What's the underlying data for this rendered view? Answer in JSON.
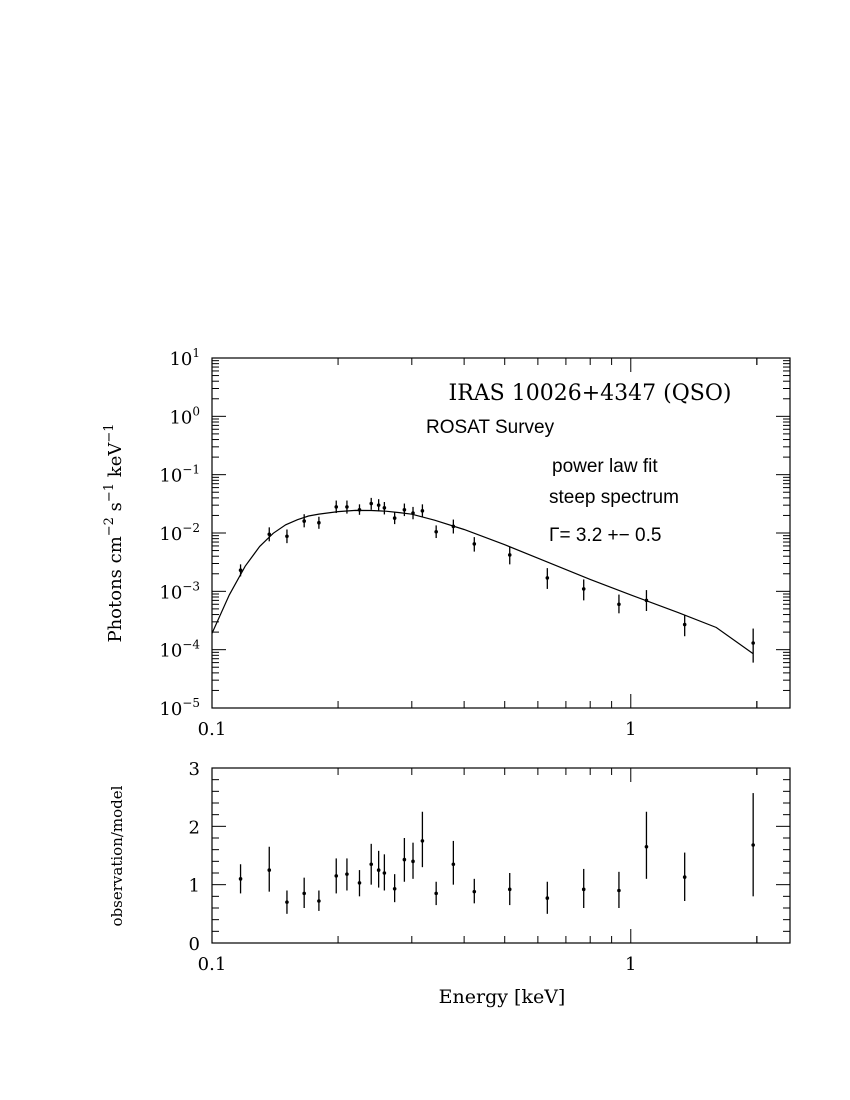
{
  "chart_data": [
    {
      "type": "scatter",
      "panel": "spectrum",
      "title": "IRAS 10026+4347 (QSO)",
      "subtitle": "ROSAT Survey",
      "annotations": {
        "fit_line1": "power law fit",
        "fit_line2": "steep spectrum",
        "gamma_symbol": "Γ",
        "gamma_text": "= 3.2 +− 0.5"
      },
      "xlabel": "",
      "ylabel": "Photons cm-2 s-1 keV-1",
      "ylabel_parts": {
        "a": "Photons cm",
        "b": "−2",
        "c": " s",
        "d": "−1",
        "e": " keV",
        "f": "−1"
      },
      "x_scale": "log",
      "y_scale": "log",
      "xlim": [
        0.1,
        2.4
      ],
      "ylim": [
        1e-05,
        10
      ],
      "x_ticks": [
        {
          "value": 0.1,
          "label": "0.1"
        },
        {
          "value": 1,
          "label": "1"
        }
      ],
      "y_ticks": [
        {
          "value": 10,
          "base": "10",
          "exp": "1"
        },
        {
          "value": 1,
          "base": "10",
          "exp": "0"
        },
        {
          "value": 0.1,
          "base": "10",
          "exp": "−1"
        },
        {
          "value": 0.01,
          "base": "10",
          "exp": "−2"
        },
        {
          "value": 0.001,
          "base": "10",
          "exp": "−3"
        },
        {
          "value": 0.0001,
          "base": "10",
          "exp": "−4"
        },
        {
          "value": 1e-05,
          "base": "10",
          "exp": "−5"
        }
      ],
      "series": [
        {
          "kind": "points",
          "x": [
            0.117,
            0.137,
            0.151,
            0.166,
            0.18,
            0.198,
            0.21,
            0.225,
            0.24,
            0.25,
            0.258,
            0.273,
            0.288,
            0.302,
            0.318,
            0.343,
            0.377,
            0.423,
            0.514,
            0.632,
            0.772,
            0.937,
            1.09,
            1.345,
            1.96
          ],
          "y": [
            0.0023,
            0.0095,
            0.0088,
            0.016,
            0.015,
            0.028,
            0.028,
            0.025,
            0.032,
            0.03,
            0.027,
            0.018,
            0.025,
            0.022,
            0.024,
            0.0105,
            0.013,
            0.0065,
            0.0042,
            0.0017,
            0.0011,
            0.0006,
            0.0007,
            0.00027,
            0.00013
          ],
          "y_lo": [
            0.0018,
            0.0072,
            0.0067,
            0.0125,
            0.0118,
            0.022,
            0.0215,
            0.0205,
            0.025,
            0.0235,
            0.0208,
            0.0142,
            0.0195,
            0.0172,
            0.0185,
            0.0082,
            0.0098,
            0.0048,
            0.0029,
            0.0011,
            0.0007,
            0.00042,
            0.00046,
            0.00017,
            6e-05
          ],
          "y_hi": [
            0.0029,
            0.0125,
            0.0115,
            0.021,
            0.019,
            0.036,
            0.036,
            0.031,
            0.04,
            0.038,
            0.034,
            0.023,
            0.032,
            0.028,
            0.031,
            0.0135,
            0.017,
            0.0085,
            0.0058,
            0.0025,
            0.0016,
            0.00088,
            0.00105,
            0.00039,
            0.00023
          ]
        },
        {
          "kind": "model",
          "x": [
            0.1,
            0.11,
            0.12,
            0.13,
            0.14,
            0.15,
            0.16,
            0.17,
            0.18,
            0.2,
            0.22,
            0.24,
            0.26,
            0.28,
            0.3,
            0.34,
            0.4,
            0.5,
            0.6,
            0.8,
            1.0,
            1.3,
            1.6,
            1.96
          ],
          "y": [
            0.00019,
            0.00087,
            0.0027,
            0.0059,
            0.0099,
            0.0138,
            0.0169,
            0.0196,
            0.0211,
            0.0233,
            0.0244,
            0.0243,
            0.0236,
            0.0224,
            0.021,
            0.0166,
            0.0115,
            0.0063,
            0.0037,
            0.0016,
            0.00087,
            0.00043,
            0.00024,
            8.5e-05
          ]
        }
      ]
    },
    {
      "type": "scatter",
      "panel": "ratio",
      "xlabel": "Energy [keV]",
      "ylabel": "observation/model",
      "x_scale": "log",
      "xlim": [
        0.1,
        2.4
      ],
      "ylim": [
        0,
        3
      ],
      "x_ticks": [
        {
          "value": 0.1,
          "label": "0.1"
        },
        {
          "value": 1,
          "label": "1"
        }
      ],
      "y_ticks": [
        {
          "value": 0,
          "label": "0"
        },
        {
          "value": 1,
          "label": "1"
        },
        {
          "value": 2,
          "label": "2"
        },
        {
          "value": 3,
          "label": "3"
        }
      ],
      "series": [
        {
          "kind": "points",
          "x": [
            0.117,
            0.137,
            0.151,
            0.166,
            0.18,
            0.198,
            0.21,
            0.225,
            0.24,
            0.25,
            0.258,
            0.273,
            0.288,
            0.302,
            0.318,
            0.343,
            0.377,
            0.423,
            0.514,
            0.632,
            0.772,
            0.937,
            1.09,
            1.345,
            1.96
          ],
          "y": [
            1.1,
            1.25,
            0.7,
            0.85,
            0.72,
            1.15,
            1.18,
            1.03,
            1.35,
            1.25,
            1.2,
            0.93,
            1.43,
            1.4,
            1.75,
            0.85,
            1.35,
            0.88,
            0.92,
            0.77,
            0.92,
            0.9,
            1.65,
            1.13,
            1.68
          ],
          "y_lo": [
            0.85,
            0.88,
            0.5,
            0.6,
            0.55,
            0.85,
            0.9,
            0.8,
            1.0,
            0.95,
            0.9,
            0.7,
            1.05,
            1.1,
            1.3,
            0.65,
            1.0,
            0.68,
            0.65,
            0.5,
            0.6,
            0.6,
            1.1,
            0.72,
            0.8
          ],
          "y_hi": [
            1.35,
            1.65,
            0.9,
            1.12,
            0.9,
            1.45,
            1.45,
            1.25,
            1.7,
            1.58,
            1.52,
            1.18,
            1.8,
            1.72,
            2.25,
            1.05,
            1.75,
            1.1,
            1.2,
            1.05,
            1.27,
            1.22,
            2.25,
            1.55,
            2.57
          ]
        }
      ]
    }
  ]
}
